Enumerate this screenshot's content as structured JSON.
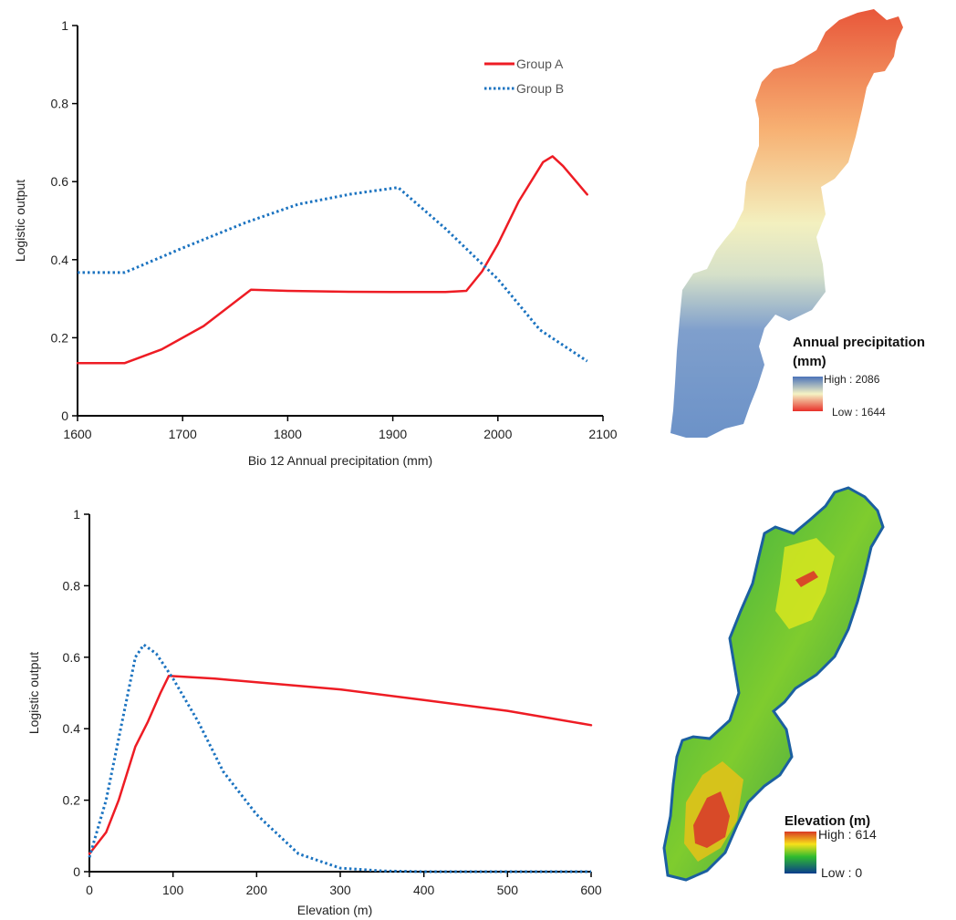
{
  "chart_data": [
    {
      "type": "line",
      "title": "",
      "xlabel": "Bio 12 Annual precipitation (mm)",
      "ylabel": "Logistic output",
      "xlim": [
        1600,
        2100
      ],
      "ylim": [
        0,
        1
      ],
      "xticks": [
        "1600",
        "1700",
        "1800",
        "1900",
        "2000",
        "2100"
      ],
      "yticks": [
        "0",
        "0.2",
        "0.4",
        "0.6",
        "0.8",
        "1"
      ],
      "legend": "top-right",
      "series": [
        {
          "name": "Group A",
          "color": "#ee1c24",
          "style": "solid",
          "points": [
            [
              1600,
              0.135
            ],
            [
              1645,
              0.135
            ],
            [
              1680,
              0.17
            ],
            [
              1720,
              0.23
            ],
            [
              1765,
              0.323
            ],
            [
              1800,
              0.32
            ],
            [
              1850,
              0.318
            ],
            [
              1900,
              0.317
            ],
            [
              1950,
              0.317
            ],
            [
              1970,
              0.32
            ],
            [
              1985,
              0.37
            ],
            [
              2000,
              0.44
            ],
            [
              2020,
              0.55
            ],
            [
              2043,
              0.65
            ],
            [
              2052,
              0.665
            ],
            [
              2062,
              0.64
            ],
            [
              2085,
              0.567
            ]
          ]
        },
        {
          "name": "Group B",
          "color": "#1b73c0",
          "style": "dotted",
          "points": [
            [
              1600,
              0.367
            ],
            [
              1645,
              0.367
            ],
            [
              1700,
              0.43
            ],
            [
              1760,
              0.495
            ],
            [
              1810,
              0.542
            ],
            [
              1860,
              0.568
            ],
            [
              1905,
              0.585
            ],
            [
              1950,
              0.48
            ],
            [
              2000,
              0.35
            ],
            [
              2040,
              0.22
            ],
            [
              2085,
              0.14
            ]
          ]
        }
      ]
    },
    {
      "type": "line",
      "title": "",
      "xlabel": "Elevation (m)",
      "ylabel": "Logistic output",
      "xlim": [
        0,
        600
      ],
      "ylim": [
        0,
        1
      ],
      "xticks": [
        "0",
        "100",
        "200",
        "300",
        "400",
        "500",
        "600"
      ],
      "yticks": [
        "0",
        "0.2",
        "0.4",
        "0.6",
        "0.8",
        "1"
      ],
      "series": [
        {
          "name": "Group A",
          "color": "#ee1c24",
          "style": "solid",
          "points": [
            [
              0,
              0.05
            ],
            [
              20,
              0.11
            ],
            [
              35,
              0.2
            ],
            [
              55,
              0.35
            ],
            [
              70,
              0.42
            ],
            [
              85,
              0.5
            ],
            [
              95,
              0.548
            ],
            [
              150,
              0.54
            ],
            [
              200,
              0.53
            ],
            [
              300,
              0.51
            ],
            [
              400,
              0.48
            ],
            [
              500,
              0.45
            ],
            [
              600,
              0.41
            ]
          ]
        },
        {
          "name": "Group B",
          "color": "#1b73c0",
          "style": "dotted",
          "points": [
            [
              0,
              0.04
            ],
            [
              20,
              0.2
            ],
            [
              40,
              0.43
            ],
            [
              55,
              0.6
            ],
            [
              65,
              0.635
            ],
            [
              80,
              0.61
            ],
            [
              100,
              0.54
            ],
            [
              130,
              0.42
            ],
            [
              160,
              0.28
            ],
            [
              200,
              0.16
            ],
            [
              250,
              0.05
            ],
            [
              300,
              0.01
            ],
            [
              350,
              0.002
            ],
            [
              400,
              0
            ],
            [
              600,
              0
            ]
          ]
        }
      ]
    }
  ],
  "maps": {
    "precip": {
      "title_line1": "Annual precipitation",
      "title_line2": "(mm)",
      "high": "High : 2086",
      "low": "Low : 1644"
    },
    "elev": {
      "title": "Elevation (m)",
      "high": "High : 614",
      "low": "Low : 0"
    }
  }
}
